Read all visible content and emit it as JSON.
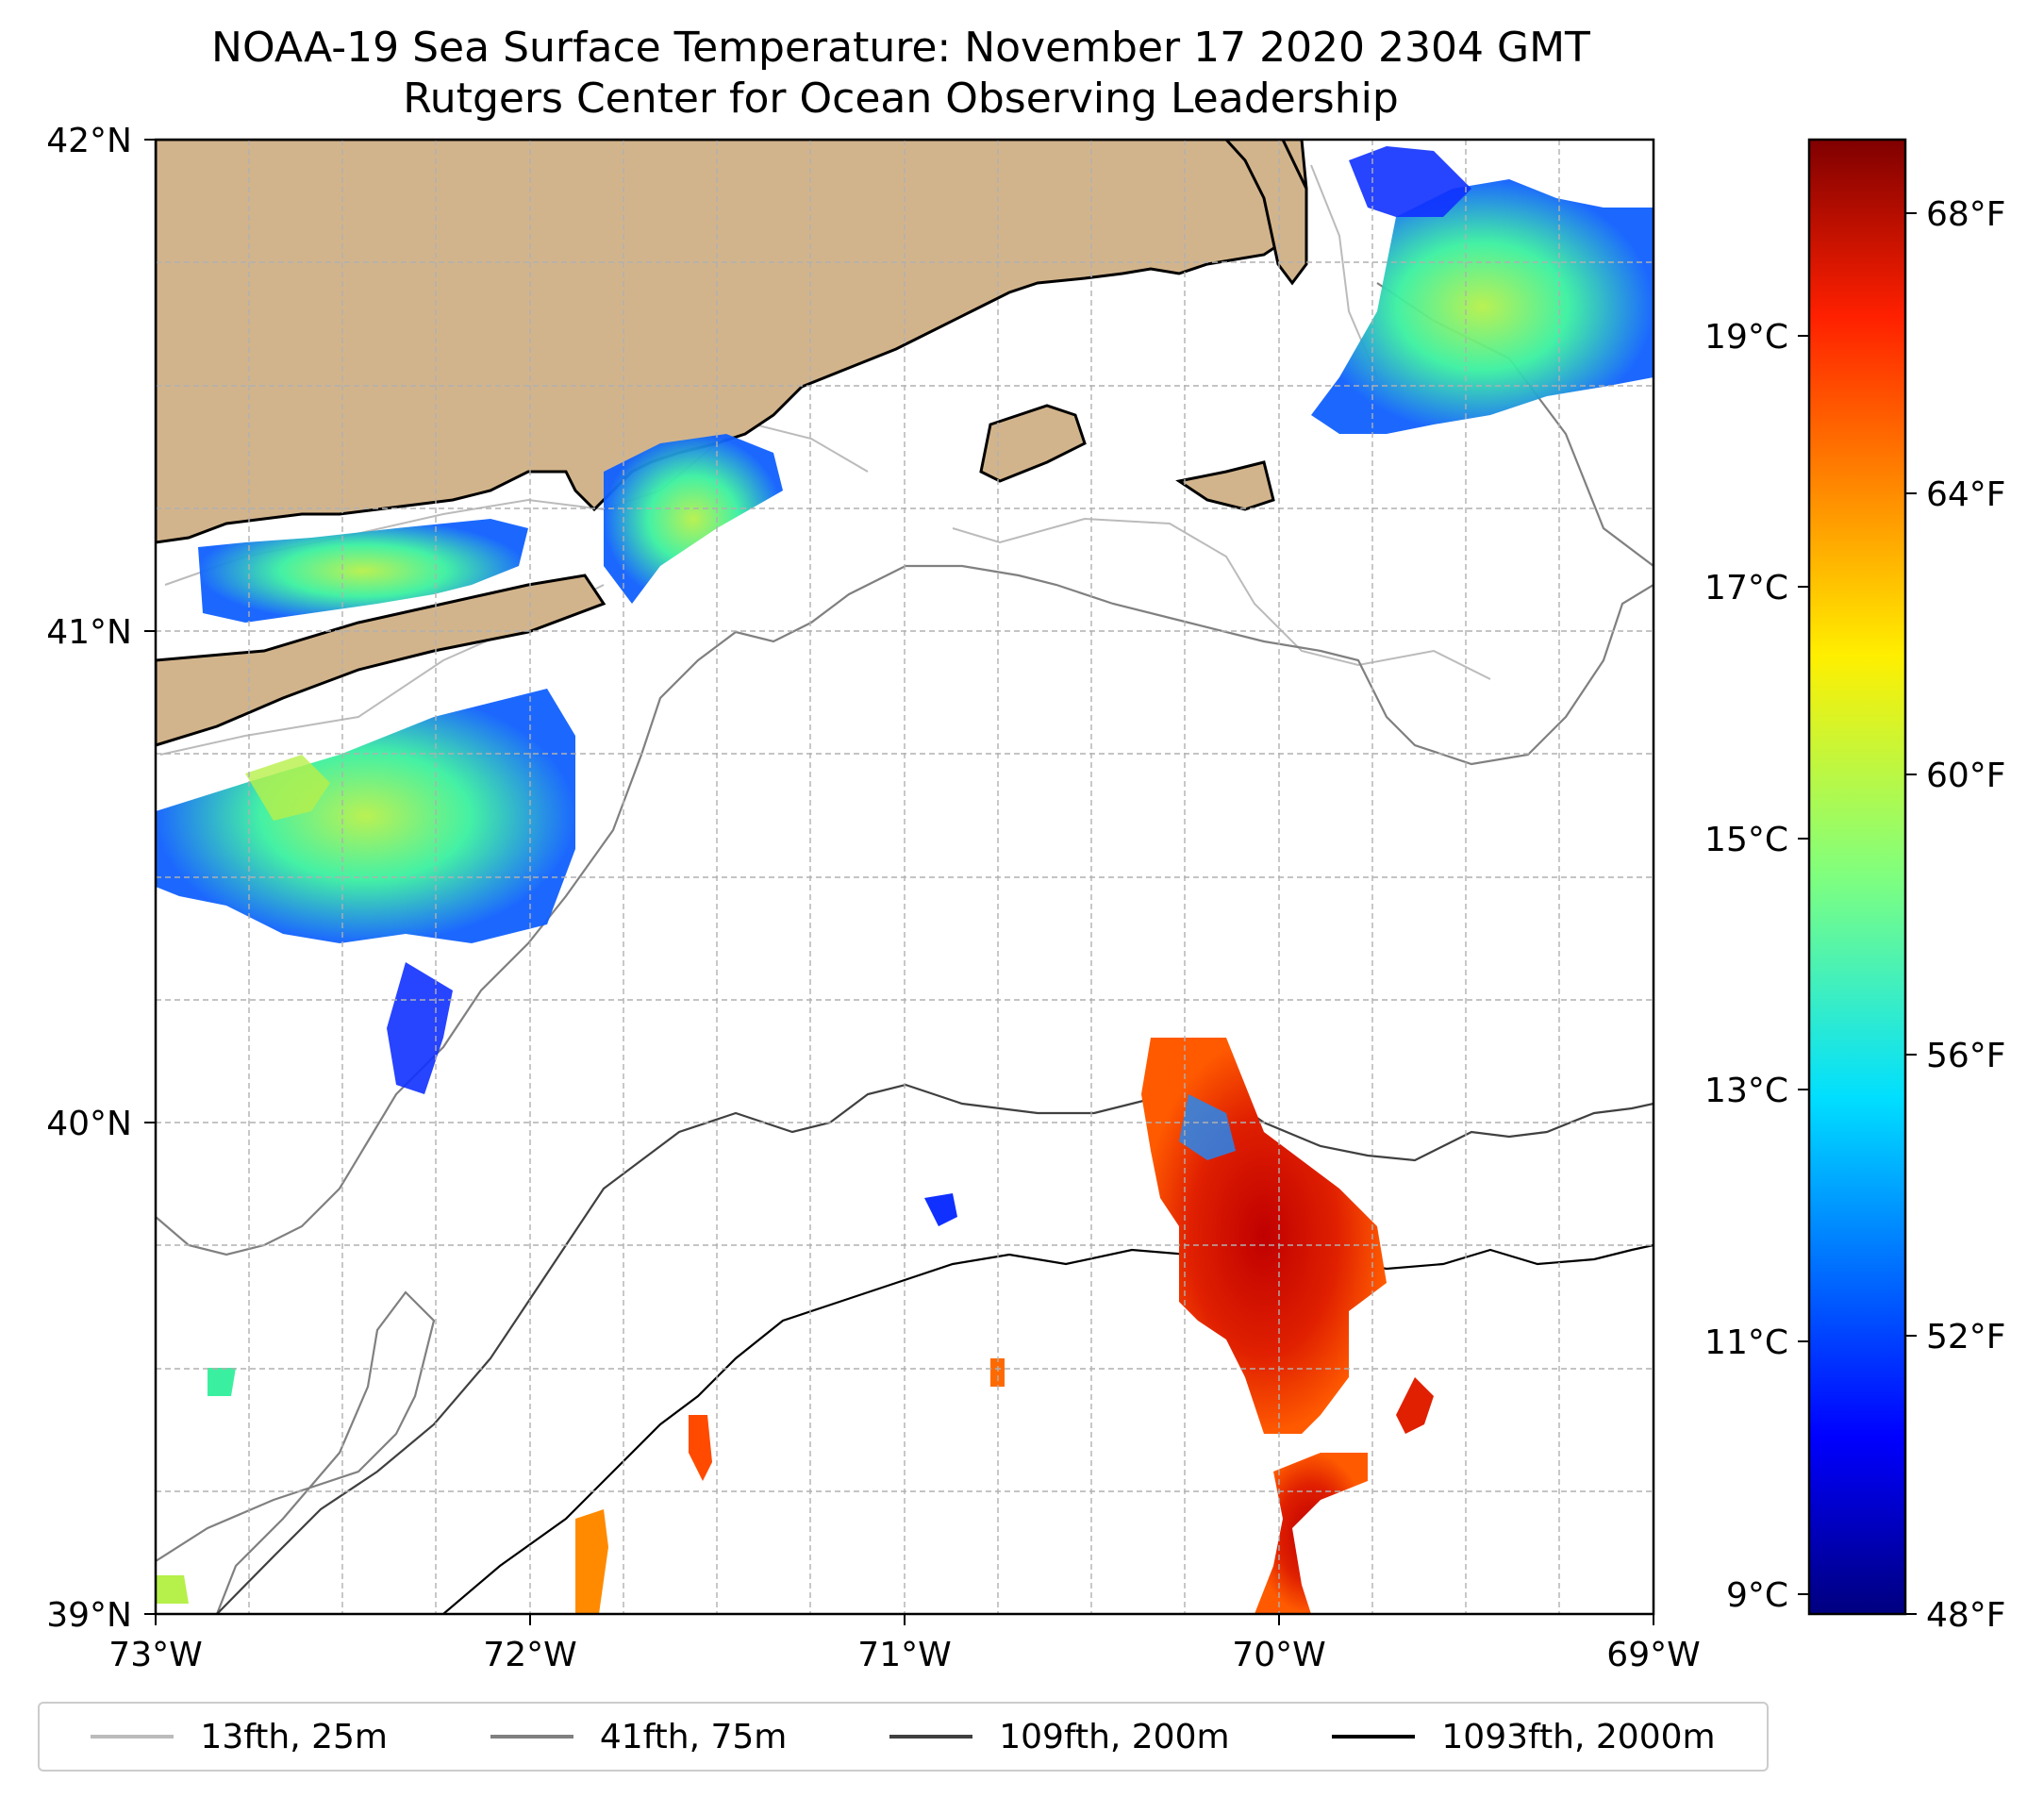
{
  "title": {
    "line1": "NOAA-19 Sea Surface Temperature: November 17 2020 2304 GMT",
    "line2": "Rutgers Center for Ocean Observing Leadership"
  },
  "map": {
    "lon_range": [
      -73,
      -69
    ],
    "lat_range": [
      39,
      42
    ],
    "x_ticks": [
      "73°W",
      "72°W",
      "71°W",
      "70°W",
      "69°W"
    ],
    "y_ticks": [
      "42°N",
      "41°N",
      "40°N",
      "39°N"
    ],
    "grid": true,
    "land_color": "#D2B48C"
  },
  "colorbar": {
    "colormap": "jet",
    "celsius_ticks": [
      "19°C",
      "17°C",
      "15°C",
      "13°C",
      "11°C",
      "9°C"
    ],
    "fahrenheit_ticks": [
      "68°F",
      "64°F",
      "60°F",
      "56°F",
      "52°F",
      "48°F"
    ],
    "range_f": [
      48,
      69
    ]
  },
  "legend": {
    "placement": "bottom",
    "items": [
      {
        "label": "13fth, 25m",
        "color": "#bbbbbb"
      },
      {
        "label": "41fth, 75m",
        "color": "#808080"
      },
      {
        "label": "109fth, 200m",
        "color": "#404040"
      },
      {
        "label": "1093fth, 2000m",
        "color": "#000000"
      }
    ]
  },
  "sst_patches_f": [
    {
      "name": "long-island-sound",
      "temp_f": 57
    },
    {
      "name": "south-shore-long-island",
      "temp_f": 58
    },
    {
      "name": "block-island",
      "temp_f": 56
    },
    {
      "name": "gulf-of-maine-east",
      "temp_f": 55
    },
    {
      "name": "shelf-break-eddy",
      "temp_f": 67
    },
    {
      "name": "warm-filament-south",
      "temp_f": 67
    }
  ]
}
